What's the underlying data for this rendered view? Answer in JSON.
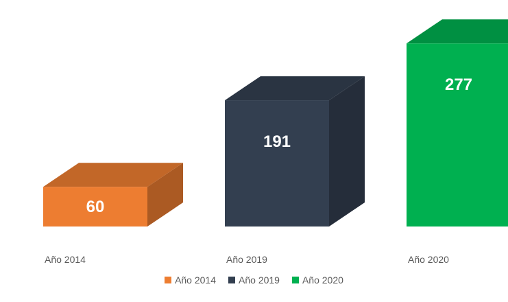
{
  "chart_data": {
    "type": "bar",
    "categories": [
      "Año 2014",
      "Año 2019",
      "Año 2020"
    ],
    "series": [
      {
        "name": "Año 2014",
        "values": [
          60,
          null,
          null
        ]
      },
      {
        "name": "Año 2019",
        "values": [
          null,
          191,
          null
        ]
      },
      {
        "name": "Año 2020",
        "values": [
          null,
          null,
          277
        ]
      }
    ],
    "values": [
      60,
      191,
      277
    ],
    "data_labels": [
      "60",
      "191",
      "277"
    ],
    "colors": [
      "#ED7D31",
      "#333F50",
      "#00B050"
    ],
    "style": "3d-box",
    "title": "",
    "xlabel": "",
    "ylabel": "",
    "ylim": [
      0,
      300
    ],
    "grid": false,
    "legend_position": "bottom",
    "legend": [
      "Año 2014",
      "Año 2019",
      "Año 2020"
    ]
  }
}
